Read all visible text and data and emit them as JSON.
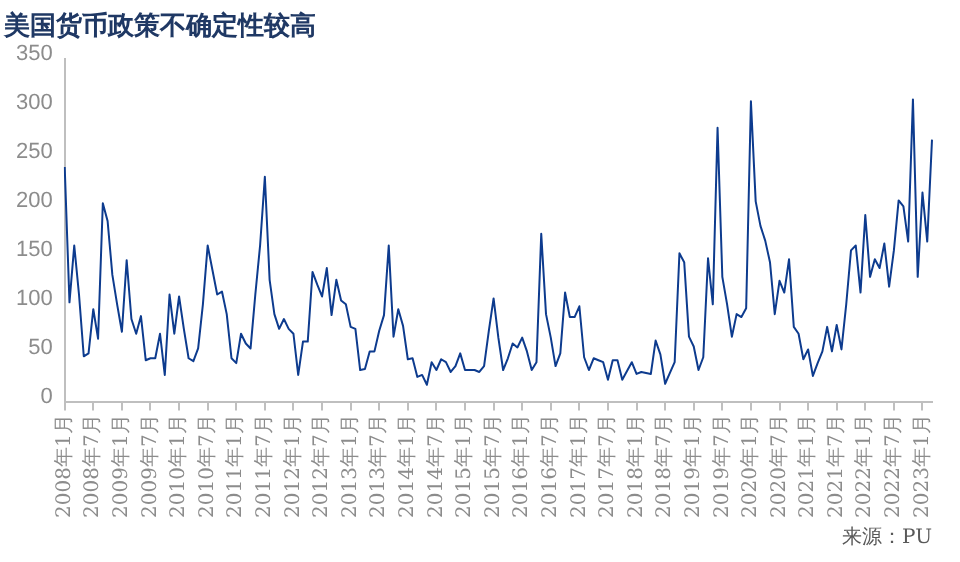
{
  "chart_data": {
    "type": "line",
    "title": "美国货币政策不确定性较高",
    "annotations": [
      "来源：PU"
    ],
    "categories": [
      "2008年1月",
      null,
      null,
      null,
      null,
      null,
      "2008年7月",
      null,
      null,
      null,
      null,
      null,
      "2009年1月",
      null,
      null,
      null,
      null,
      null,
      "2009年7月",
      null,
      null,
      null,
      null,
      null,
      "2010年1月",
      null,
      null,
      null,
      null,
      null,
      "2010年7月",
      null,
      null,
      null,
      null,
      null,
      "2011年1月",
      null,
      null,
      null,
      null,
      null,
      "2011年7月",
      null,
      null,
      null,
      null,
      null,
      "2012年1月",
      null,
      null,
      null,
      null,
      null,
      "2012年7月",
      null,
      null,
      null,
      null,
      null,
      "2013年1月",
      null,
      null,
      null,
      null,
      null,
      "2013年7月",
      null,
      null,
      null,
      null,
      null,
      "2014年1月",
      null,
      null,
      null,
      null,
      null,
      "2014年7月",
      null,
      null,
      null,
      null,
      null,
      "2015年1月",
      null,
      null,
      null,
      null,
      null,
      "2015年7月",
      null,
      null,
      null,
      null,
      null,
      "2016年1月",
      null,
      null,
      null,
      null,
      null,
      "2016年7月",
      null,
      null,
      null,
      null,
      null,
      "2017年1月",
      null,
      null,
      null,
      null,
      null,
      "2017年7月",
      null,
      null,
      null,
      null,
      null,
      "2018年1月",
      null,
      null,
      null,
      null,
      null,
      "2018年7月",
      null,
      null,
      null,
      null,
      null,
      "2019年1月",
      null,
      null,
      null,
      null,
      null,
      "2019年7月",
      null,
      null,
      null,
      null,
      null,
      "2020年1月",
      null,
      null,
      null,
      null,
      null,
      "2020年7月",
      null,
      null,
      null,
      null,
      null,
      "2021年1月",
      null,
      null,
      null,
      null,
      null,
      "2021年7月",
      null,
      null,
      null,
      null,
      null,
      "2022年1月",
      null,
      null,
      null,
      null,
      null,
      "2022年7月",
      null,
      null,
      null,
      null,
      null,
      "2023年1月",
      null,
      null
    ],
    "series": [
      {
        "color": "#0d3b8e",
        "values": [
          240,
          102,
          160,
          110,
          47,
          50,
          95,
          65,
          203,
          185,
          130,
          100,
          72,
          145,
          85,
          70,
          88,
          43,
          45,
          45,
          70,
          28,
          110,
          70,
          108,
          75,
          45,
          42,
          55,
          100,
          160,
          135,
          110,
          113,
          90,
          45,
          40,
          70,
          60,
          55,
          110,
          160,
          230,
          125,
          90,
          75,
          85,
          75,
          70,
          28,
          62,
          62,
          133,
          120,
          108,
          137,
          89,
          125,
          104,
          100,
          77,
          75,
          33,
          34,
          52,
          52,
          73,
          89,
          160,
          67,
          95,
          78,
          44,
          45,
          26,
          28,
          18,
          41,
          33,
          44,
          41,
          31,
          37,
          50,
          33,
          33,
          33,
          31,
          37,
          73,
          106,
          66,
          33,
          45,
          60,
          56,
          66,
          52,
          33,
          41,
          172,
          90,
          66,
          37,
          50,
          112,
          87,
          87,
          98,
          46,
          33,
          45,
          43,
          41,
          23,
          43,
          43,
          23,
          32,
          41,
          29,
          31,
          30,
          29,
          63,
          49,
          19,
          30,
          41,
          152,
          143,
          67,
          57,
          33,
          46,
          147,
          100,
          280,
          128,
          100,
          67,
          90,
          87,
          96,
          307,
          205,
          180,
          165,
          143,
          90,
          124,
          112,
          146,
          77,
          70,
          44,
          54,
          27,
          40,
          52,
          77,
          52,
          79,
          54,
          100,
          155,
          160,
          112,
          191,
          128,
          146,
          137,
          162,
          118,
          155,
          206,
          200,
          164,
          309,
          128,
          214,
          164,
          268
        ]
      }
    ],
    "ylim": [
      0,
      350
    ],
    "yticks": [
      0,
      50,
      100,
      150,
      200,
      250,
      300,
      350
    ],
    "grid": false,
    "legend": false,
    "marker": "none",
    "line_style": "solid"
  }
}
